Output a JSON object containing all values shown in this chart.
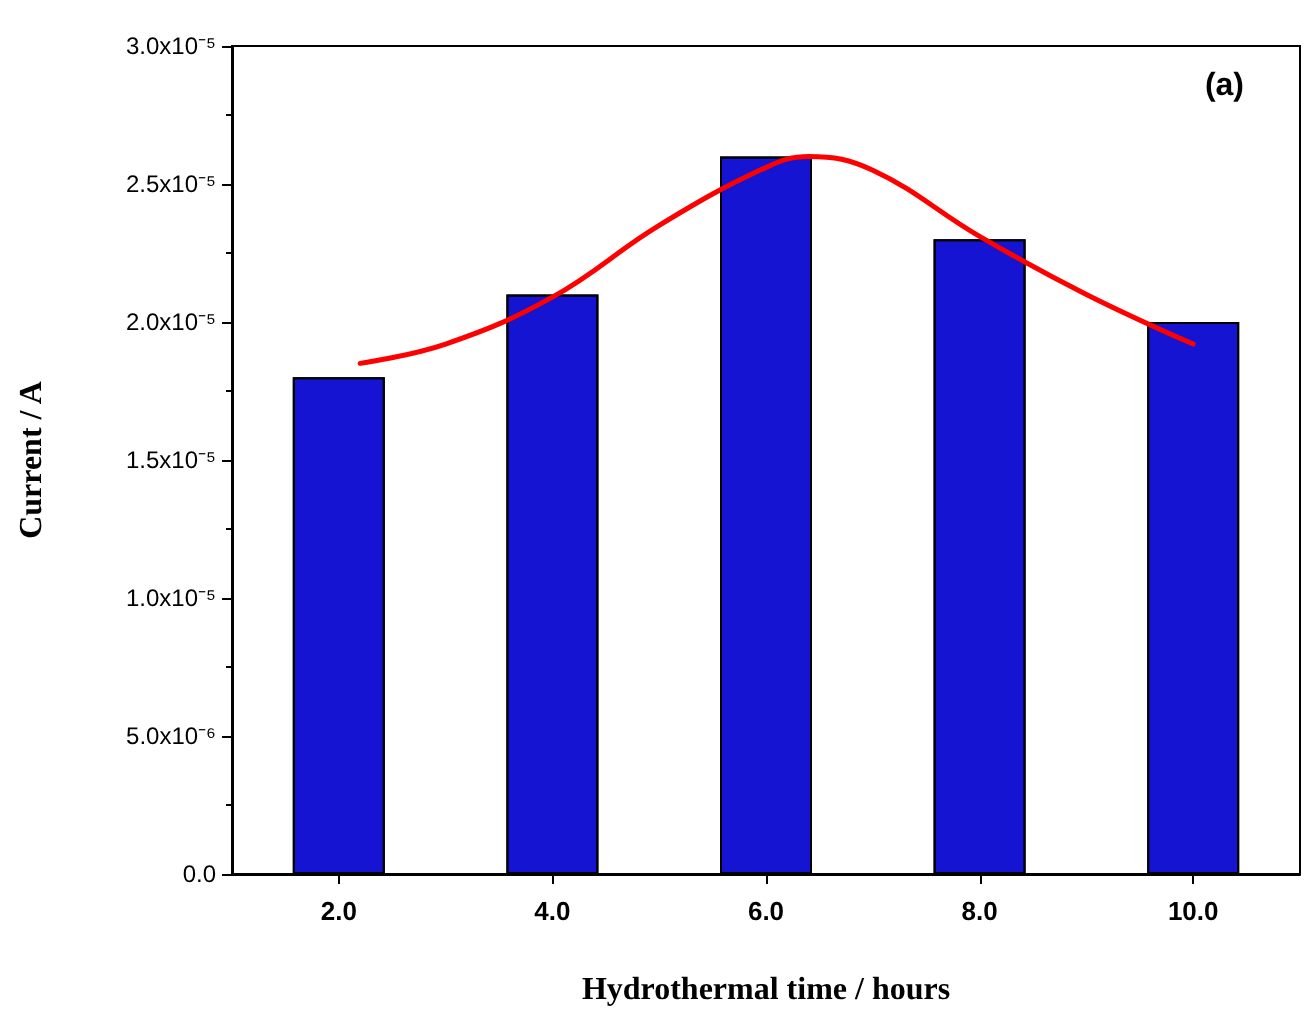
{
  "chart_data": {
    "type": "bar",
    "xlabel": "Hydrothermal time / hours",
    "ylabel": "Current / A",
    "annotations": [
      "(a)"
    ],
    "x": [
      2,
      4,
      6,
      8,
      10
    ],
    "series": [
      {
        "color": "#1414d2",
        "values": [
          1.8e-05,
          2.1e-05,
          2.6e-05,
          2.3e-05,
          2e-05
        ]
      },
      {
        "type": "line",
        "color": "#ff0000",
        "x": [
          2.2,
          3,
          4,
          5,
          6,
          6.4,
          7,
          8,
          9,
          10
        ],
        "values": [
          1.85e-05,
          1.92e-05,
          2.09e-05,
          2.35e-05,
          2.56e-05,
          2.6e-05,
          2.55e-05,
          2.31e-05,
          2.1e-05,
          1.92e-05
        ],
        "marker": "none"
      }
    ],
    "xlim": [
      1,
      11
    ],
    "xticks": [
      {
        "value": 2,
        "label": "2.0"
      },
      {
        "value": 4,
        "label": "4.0"
      },
      {
        "value": 6,
        "label": "6.0"
      },
      {
        "value": 8,
        "label": "8.0"
      },
      {
        "value": 10,
        "label": "10.0"
      }
    ],
    "ylim": [
      0,
      3e-05
    ],
    "yticks": [
      {
        "value": 0,
        "label": "0.0"
      },
      {
        "value": 5e-06,
        "label": "5.0x10⁻⁶"
      },
      {
        "value": 1e-05,
        "label": "1.0x10⁻⁵"
      },
      {
        "value": 1.5e-05,
        "label": "1.5x10⁻⁵"
      },
      {
        "value": 2e-05,
        "label": "2.0x10⁻⁵"
      },
      {
        "value": 2.5e-05,
        "label": "2.5x10⁻⁵"
      },
      {
        "value": 3e-05,
        "label": "3.0x10⁻⁵"
      }
    ],
    "grid": false
  }
}
